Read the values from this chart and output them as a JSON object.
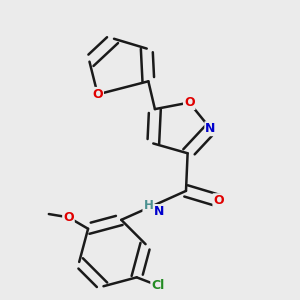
{
  "background_color": "#ebebeb",
  "bond_color": "#1a1a1a",
  "atom_colors": {
    "O": "#e00000",
    "N": "#0000cc",
    "Cl": "#228b22",
    "C": "#1a1a1a",
    "H": "#4a9090"
  },
  "figsize": [
    3.0,
    3.0
  ],
  "dpi": 100
}
